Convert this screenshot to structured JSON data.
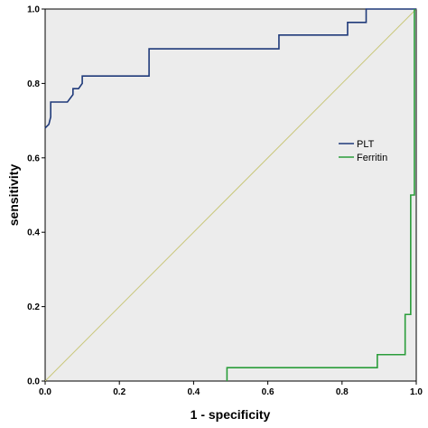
{
  "chart_data": {
    "type": "line",
    "xlabel": "1 - specificity",
    "ylabel": "sensitivity",
    "xlim": [
      0,
      1
    ],
    "ylim": [
      0,
      1
    ],
    "xticks": [
      "0.0",
      "0.2",
      "0.4",
      "0.6",
      "0.8",
      "1.0"
    ],
    "yticks": [
      "0.0",
      "0.2",
      "0.4",
      "0.6",
      "0.8",
      "1.0"
    ],
    "grid": false,
    "legend_position": "right",
    "background_color": "#ececec",
    "reference_line": {
      "color": "#c9c77a",
      "x": [
        0,
        1
      ],
      "y": [
        0,
        1
      ]
    },
    "series": [
      {
        "name": "PLT",
        "color": "#1f3a7a",
        "x": [
          0,
          0,
          0.01,
          0.015,
          0.015,
          0.06,
          0.075,
          0.075,
          0.09,
          0.1,
          0.1,
          0.28,
          0.28,
          0.63,
          0.63,
          0.815,
          0.815,
          0.865,
          0.865,
          1
        ],
        "y": [
          0.68,
          0.68,
          0.69,
          0.71,
          0.75,
          0.75,
          0.77,
          0.786,
          0.786,
          0.8,
          0.82,
          0.82,
          0.893,
          0.893,
          0.93,
          0.93,
          0.964,
          0.964,
          1,
          1
        ]
      },
      {
        "name": "Ferritin",
        "color": "#2a9d3a",
        "x": [
          0.49,
          0.49,
          0.895,
          0.895,
          0.97,
          0.97,
          0.985,
          0.985,
          0.995,
          0.995
        ],
        "y": [
          0,
          0.036,
          0.036,
          0.071,
          0.071,
          0.179,
          0.179,
          0.5,
          0.5,
          1
        ]
      }
    ]
  }
}
